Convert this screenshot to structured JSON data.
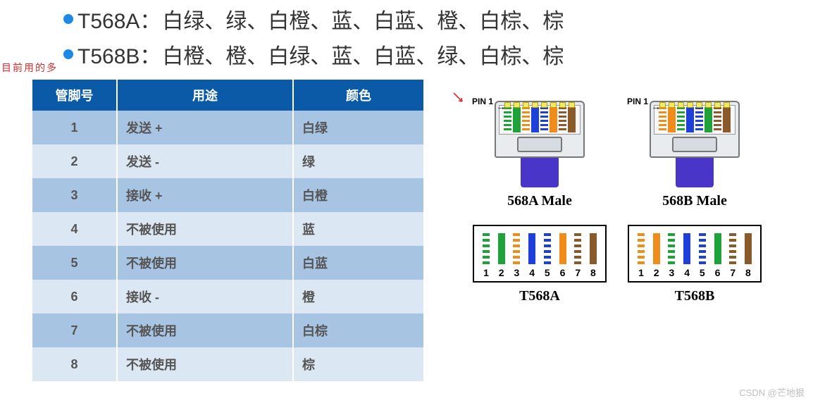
{
  "standards": {
    "a": {
      "name": "T568A：",
      "sequence": "白绿、绿、白橙、蓝、白蓝、橙、白棕、棕"
    },
    "b": {
      "name": "T568B：",
      "sequence": "白橙、橙、白绿、蓝、白蓝、绿、白棕、棕"
    }
  },
  "annotation": "目前用的多",
  "table": {
    "columns": [
      "管脚号",
      "用途",
      "颜色"
    ],
    "header_bg": "#0b5aa8",
    "header_fg": "#ffffff",
    "row_odd_bg": "#a7c5e3",
    "row_even_bg": "#dbe7f3",
    "rows": [
      {
        "pin": "1",
        "use": "发送 +",
        "color": "白绿"
      },
      {
        "pin": "2",
        "use": "发送 -",
        "color": "绿"
      },
      {
        "pin": "3",
        "use": "接收 +",
        "color": "白橙"
      },
      {
        "pin": "4",
        "use": "不被使用",
        "color": "蓝"
      },
      {
        "pin": "5",
        "use": "不被使用",
        "color": "白蓝"
      },
      {
        "pin": "6",
        "use": "接收 -",
        "color": "橙"
      },
      {
        "pin": "7",
        "use": "不被使用",
        "color": "白棕"
      },
      {
        "pin": "8",
        "use": "不被使用",
        "color": "棕"
      }
    ]
  },
  "connectors": {
    "pin1_text": "PIN 1",
    "a": {
      "male_label": "568A Male",
      "box_label": "T568A"
    },
    "b": {
      "male_label": "568B Male",
      "box_label": "T568B"
    }
  },
  "wire_colors": {
    "green": "#1fa23a",
    "orange": "#f08c1a",
    "blue": "#1e40d8",
    "brown": "#8a5a2b",
    "a_order": [
      {
        "c": "#1fa23a",
        "striped": true
      },
      {
        "c": "#1fa23a",
        "striped": false
      },
      {
        "c": "#f08c1a",
        "striped": true
      },
      {
        "c": "#1e40d8",
        "striped": false
      },
      {
        "c": "#1e40d8",
        "striped": true
      },
      {
        "c": "#f08c1a",
        "striped": false
      },
      {
        "c": "#8a5a2b",
        "striped": true
      },
      {
        "c": "#8a5a2b",
        "striped": false
      }
    ],
    "b_order": [
      {
        "c": "#f08c1a",
        "striped": true
      },
      {
        "c": "#f08c1a",
        "striped": false
      },
      {
        "c": "#1fa23a",
        "striped": true
      },
      {
        "c": "#1e40d8",
        "striped": false
      },
      {
        "c": "#1e40d8",
        "striped": true
      },
      {
        "c": "#1fa23a",
        "striped": false
      },
      {
        "c": "#8a5a2b",
        "striped": true
      },
      {
        "c": "#8a5a2b",
        "striped": false
      }
    ]
  },
  "stripe_numbers": [
    "1",
    "2",
    "3",
    "4",
    "5",
    "6",
    "7",
    "8"
  ],
  "watermark": "CSDN @芒地狠"
}
